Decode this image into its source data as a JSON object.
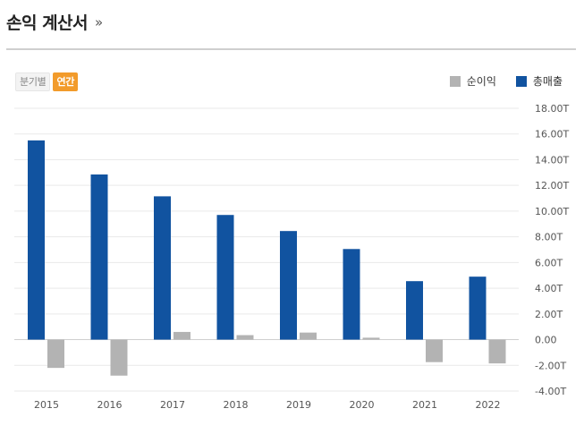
{
  "header": {
    "title": "손익 계산서",
    "more": "»"
  },
  "toggle": {
    "quarterly": "분기별",
    "annual": "연간"
  },
  "chart_data": {
    "type": "bar",
    "categories": [
      "2015",
      "2016",
      "2017",
      "2018",
      "2019",
      "2020",
      "2021",
      "2022"
    ],
    "series": [
      {
        "name": "순이익",
        "color": "#b3b3b3",
        "values": [
          -2.2,
          -2.8,
          0.6,
          0.35,
          0.55,
          0.15,
          -1.75,
          -1.85
        ]
      },
      {
        "name": "총매출",
        "color": "#1153a0",
        "values": [
          15.5,
          12.85,
          11.15,
          9.7,
          8.45,
          7.05,
          4.55,
          4.9
        ]
      }
    ],
    "yticks": [
      "18.00T",
      "16.00T",
      "14.00T",
      "12.00T",
      "10.00T",
      "8.00T",
      "6.00T",
      "4.00T",
      "2.00T",
      "0.00",
      "-2.00T",
      "-4.00T"
    ],
    "ylim": [
      -4,
      18
    ],
    "unit": "T",
    "grid": true,
    "legend_position": "top-right"
  }
}
